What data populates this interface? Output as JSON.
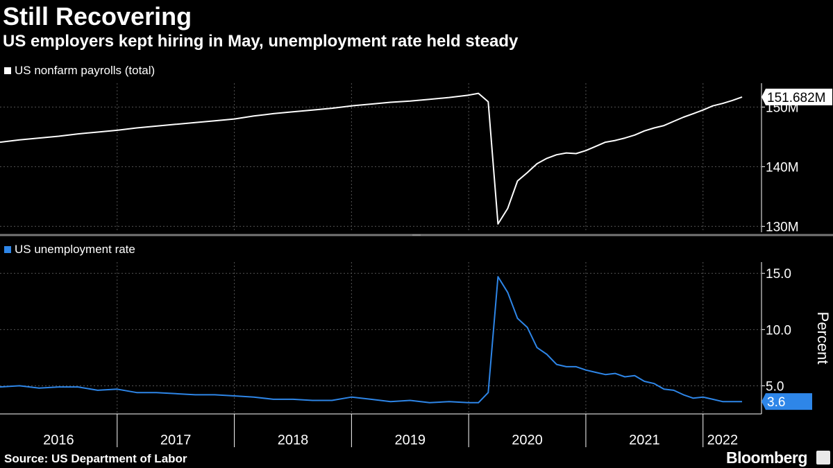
{
  "header": {
    "title": "Still Recovering",
    "subtitle": "US employers kept hiring in May, unemployment rate held steady"
  },
  "footer": {
    "source": "Source: US Department of Labor",
    "brand": "Bloomberg"
  },
  "colors": {
    "payrolls": "#ffffff",
    "unemployment": "#2e86e8",
    "grid": "#555555"
  },
  "chart_data": [
    {
      "type": "line",
      "legend": "US nonfarm payrolls (total)",
      "ylim": [
        129,
        154
      ],
      "yticks": [
        {
          "value": 130,
          "label": "130M"
        },
        {
          "value": 140,
          "label": "140M"
        },
        {
          "value": 150,
          "label": "150M"
        }
      ],
      "last_value_label": "151.682M",
      "series": [
        {
          "name": "US nonfarm payrolls (total)",
          "x": [
            "2016-01",
            "2016-03",
            "2016-05",
            "2016-07",
            "2016-09",
            "2016-11",
            "2017-01",
            "2017-03",
            "2017-05",
            "2017-07",
            "2017-09",
            "2017-11",
            "2018-01",
            "2018-03",
            "2018-05",
            "2018-07",
            "2018-09",
            "2018-11",
            "2019-01",
            "2019-03",
            "2019-05",
            "2019-07",
            "2019-09",
            "2019-11",
            "2020-01",
            "2020-02",
            "2020-03",
            "2020-04",
            "2020-05",
            "2020-06",
            "2020-07",
            "2020-08",
            "2020-09",
            "2020-10",
            "2020-11",
            "2020-12",
            "2021-01",
            "2021-02",
            "2021-03",
            "2021-04",
            "2021-05",
            "2021-06",
            "2021-07",
            "2021-08",
            "2021-09",
            "2021-10",
            "2021-11",
            "2021-12",
            "2022-01",
            "2022-02",
            "2022-03",
            "2022-04",
            "2022-05"
          ],
          "values": [
            144.1,
            144.5,
            144.8,
            145.1,
            145.5,
            145.8,
            146.1,
            146.5,
            146.8,
            147.1,
            147.4,
            147.7,
            148.0,
            148.5,
            148.9,
            149.2,
            149.5,
            149.8,
            150.2,
            150.5,
            150.8,
            151.0,
            151.3,
            151.6,
            152.0,
            152.3,
            150.9,
            130.4,
            133.0,
            137.6,
            139.0,
            140.5,
            141.4,
            142.0,
            142.3,
            142.2,
            142.7,
            143.4,
            144.1,
            144.4,
            144.8,
            145.3,
            146.0,
            146.5,
            146.9,
            147.6,
            148.3,
            148.9,
            149.5,
            150.2,
            150.6,
            151.1,
            151.682
          ]
        }
      ]
    },
    {
      "type": "line",
      "legend": "US unemployment rate",
      "ylabel": "Percent",
      "ylim": [
        2.5,
        16.0
      ],
      "yticks": [
        {
          "value": 5,
          "label": "5.0"
        },
        {
          "value": 10,
          "label": "10.0"
        },
        {
          "value": 15,
          "label": "15.0"
        }
      ],
      "last_value_label": "3.6",
      "series": [
        {
          "name": "US unemployment rate",
          "x": [
            "2016-01",
            "2016-03",
            "2016-05",
            "2016-07",
            "2016-09",
            "2016-11",
            "2017-01",
            "2017-03",
            "2017-05",
            "2017-07",
            "2017-09",
            "2017-11",
            "2018-01",
            "2018-03",
            "2018-05",
            "2018-07",
            "2018-09",
            "2018-11",
            "2019-01",
            "2019-03",
            "2019-05",
            "2019-07",
            "2019-09",
            "2019-11",
            "2020-01",
            "2020-02",
            "2020-03",
            "2020-04",
            "2020-05",
            "2020-06",
            "2020-07",
            "2020-08",
            "2020-09",
            "2020-10",
            "2020-11",
            "2020-12",
            "2021-01",
            "2021-02",
            "2021-03",
            "2021-04",
            "2021-05",
            "2021-06",
            "2021-07",
            "2021-08",
            "2021-09",
            "2021-10",
            "2021-11",
            "2021-12",
            "2022-01",
            "2022-02",
            "2022-03",
            "2022-04",
            "2022-05"
          ],
          "values": [
            4.9,
            5.0,
            4.8,
            4.9,
            4.9,
            4.6,
            4.7,
            4.4,
            4.4,
            4.3,
            4.2,
            4.2,
            4.1,
            4.0,
            3.8,
            3.8,
            3.7,
            3.7,
            4.0,
            3.8,
            3.6,
            3.7,
            3.5,
            3.6,
            3.5,
            3.5,
            4.4,
            14.7,
            13.3,
            11.0,
            10.2,
            8.4,
            7.8,
            6.9,
            6.7,
            6.7,
            6.4,
            6.2,
            6.0,
            6.1,
            5.8,
            5.9,
            5.4,
            5.2,
            4.7,
            4.6,
            4.2,
            3.9,
            4.0,
            3.8,
            3.6,
            3.6,
            3.6
          ]
        }
      ]
    }
  ],
  "x_axis": {
    "year_labels": [
      "2016",
      "2017",
      "2018",
      "2019",
      "2020",
      "2021",
      "2022"
    ]
  }
}
